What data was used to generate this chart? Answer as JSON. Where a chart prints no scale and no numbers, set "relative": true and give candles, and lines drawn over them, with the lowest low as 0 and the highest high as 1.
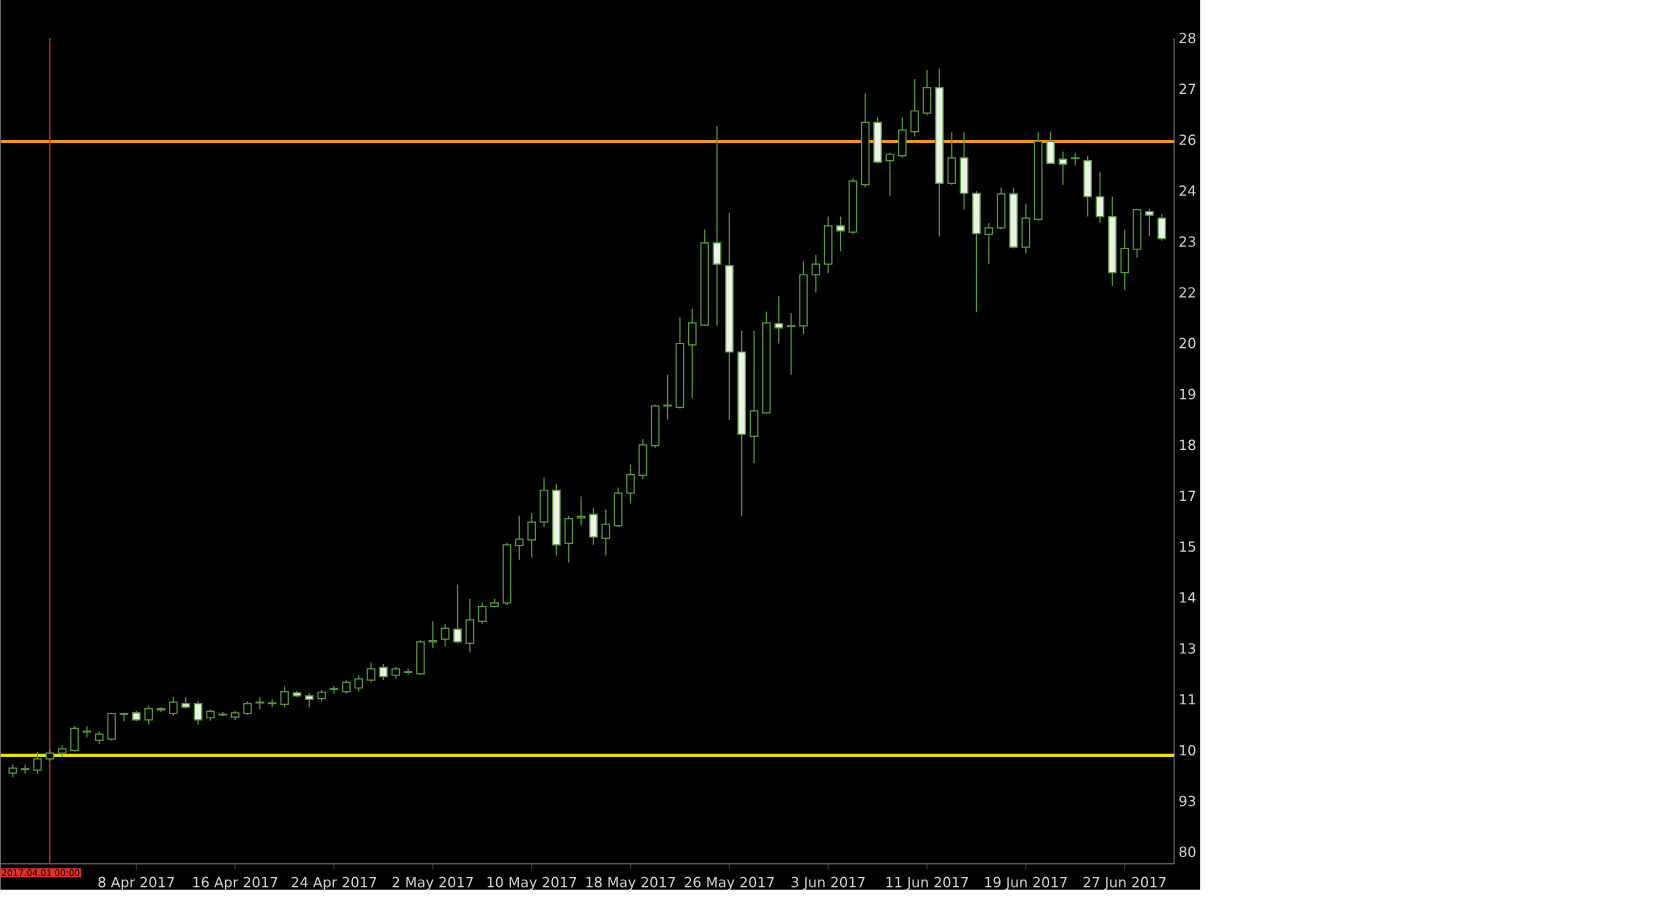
{
  "chart_data": {
    "type": "candlestick",
    "color": "#5a9a3c",
    "relative": true,
    "x": [
      "2017-03-29",
      "2017-03-30",
      "2017-03-31",
      "2017-04-01",
      "2017-04-02",
      "2017-04-03",
      "2017-04-04",
      "2017-04-05",
      "2017-04-06",
      "2017-04-07",
      "2017-04-08",
      "2017-04-09",
      "2017-04-10",
      "2017-04-11",
      "2017-04-12",
      "2017-04-13",
      "2017-04-14",
      "2017-04-15",
      "2017-04-16",
      "2017-04-17",
      "2017-04-18",
      "2017-04-19",
      "2017-04-20",
      "2017-04-21",
      "2017-04-22",
      "2017-04-23",
      "2017-04-24",
      "2017-04-25",
      "2017-04-26",
      "2017-04-27",
      "2017-04-28",
      "2017-04-29",
      "2017-04-30",
      "2017-05-01",
      "2017-05-02",
      "2017-05-03",
      "2017-05-04",
      "2017-05-05",
      "2017-05-06",
      "2017-05-07",
      "2017-05-08",
      "2017-05-09",
      "2017-05-10",
      "2017-05-11",
      "2017-05-12",
      "2017-05-13",
      "2017-05-14",
      "2017-05-15",
      "2017-05-16",
      "2017-05-17",
      "2017-05-18",
      "2017-05-19",
      "2017-05-20",
      "2017-05-21",
      "2017-05-22",
      "2017-05-23",
      "2017-05-24",
      "2017-05-25",
      "2017-05-26",
      "2017-05-27",
      "2017-05-28",
      "2017-05-29",
      "2017-05-30",
      "2017-05-31",
      "2017-06-01",
      "2017-06-02",
      "2017-06-03",
      "2017-06-04",
      "2017-06-05",
      "2017-06-06",
      "2017-06-07",
      "2017-06-08",
      "2017-06-09",
      "2017-06-10",
      "2017-06-11",
      "2017-06-12",
      "2017-06-13",
      "2017-06-14",
      "2017-06-15",
      "2017-06-16",
      "2017-06-17",
      "2017-06-18",
      "2017-06-19",
      "2017-06-20",
      "2017-06-21",
      "2017-06-22",
      "2017-06-23",
      "2017-06-24",
      "2017-06-25",
      "2017-06-26",
      "2017-06-27",
      "2017-06-28",
      "2017-06-29",
      "2017-06-30"
    ],
    "ohlc": [
      [
        0.006,
        0.018,
        0,
        0.013
      ],
      [
        0.012,
        0.018,
        0.005,
        0.011
      ],
      [
        0.01,
        0.036,
        0.005,
        0.026
      ],
      [
        0.026,
        0.04,
        0.023,
        0.034
      ],
      [
        0.034,
        0.045,
        0.029,
        0.04
      ],
      [
        0.038,
        0.072,
        0.036,
        0.069
      ],
      [
        0.065,
        0.072,
        0.056,
        0.064
      ],
      [
        0.052,
        0.065,
        0.047,
        0.061
      ],
      [
        0.054,
        0.091,
        0.052,
        0.09
      ],
      [
        0.09,
        0.091,
        0.079,
        0.089
      ],
      [
        0.091,
        0.094,
        0.079,
        0.081
      ],
      [
        0.081,
        0.101,
        0.074,
        0.097
      ],
      [
        0.095,
        0.099,
        0.092,
        0.097
      ],
      [
        0.09,
        0.113,
        0.087,
        0.106
      ],
      [
        0.104,
        0.113,
        0.097,
        0.099
      ],
      [
        0.104,
        0.108,
        0.074,
        0.081
      ],
      [
        0.084,
        0.096,
        0.08,
        0.093
      ],
      [
        0.088,
        0.092,
        0.086,
        0.089
      ],
      [
        0.085,
        0.094,
        0.081,
        0.091
      ],
      [
        0.09,
        0.107,
        0.088,
        0.104
      ],
      [
        0.105,
        0.113,
        0.096,
        0.106
      ],
      [
        0.104,
        0.11,
        0.099,
        0.105
      ],
      [
        0.103,
        0.128,
        0.099,
        0.121
      ],
      [
        0.119,
        0.122,
        0.113,
        0.115
      ],
      [
        0.115,
        0.119,
        0.099,
        0.11
      ],
      [
        0.111,
        0.123,
        0.107,
        0.12
      ],
      [
        0.124,
        0.129,
        0.118,
        0.125
      ],
      [
        0.121,
        0.137,
        0.118,
        0.134
      ],
      [
        0.126,
        0.144,
        0.121,
        0.139
      ],
      [
        0.137,
        0.162,
        0.134,
        0.153
      ],
      [
        0.155,
        0.16,
        0.137,
        0.142
      ],
      [
        0.144,
        0.156,
        0.139,
        0.153
      ],
      [
        0.148,
        0.153,
        0.145,
        0.149
      ],
      [
        0.146,
        0.194,
        0.145,
        0.191
      ],
      [
        0.191,
        0.22,
        0.182,
        0.193
      ],
      [
        0.195,
        0.216,
        0.185,
        0.21
      ],
      [
        0.209,
        0.272,
        0.189,
        0.191
      ],
      [
        0.189,
        0.252,
        0.176,
        0.222
      ],
      [
        0.22,
        0.247,
        0.216,
        0.241
      ],
      [
        0.241,
        0.252,
        0.24,
        0.246
      ],
      [
        0.246,
        0.331,
        0.243,
        0.328
      ],
      [
        0.327,
        0.369,
        0.307,
        0.336
      ],
      [
        0.335,
        0.373,
        0.31,
        0.36
      ],
      [
        0.36,
        0.423,
        0.353,
        0.405
      ],
      [
        0.405,
        0.414,
        0.313,
        0.328
      ],
      [
        0.33,
        0.369,
        0.303,
        0.365
      ],
      [
        0.366,
        0.396,
        0.355,
        0.368
      ],
      [
        0.371,
        0.38,
        0.328,
        0.339
      ],
      [
        0.337,
        0.378,
        0.313,
        0.357
      ],
      [
        0.355,
        0.409,
        0.353,
        0.401
      ],
      [
        0.401,
        0.441,
        0.387,
        0.427
      ],
      [
        0.426,
        0.477,
        0.421,
        0.469
      ],
      [
        0.468,
        0.526,
        0.465,
        0.524
      ],
      [
        0.524,
        0.568,
        0.505,
        0.525
      ],
      [
        0.522,
        0.649,
        0.52,
        0.612
      ],
      [
        0.61,
        0.661,
        0.535,
        0.641
      ],
      [
        0.638,
        0.773,
        0.637,
        0.754
      ],
      [
        0.754,
        0.919,
        0.637,
        0.724
      ],
      [
        0.722,
        0.796,
        0.504,
        0.6
      ],
      [
        0.6,
        0.63,
        0.369,
        0.484
      ],
      [
        0.481,
        0.63,
        0.443,
        0.517
      ],
      [
        0.514,
        0.657,
        0.513,
        0.641
      ],
      [
        0.64,
        0.679,
        0.612,
        0.634
      ],
      [
        0.636,
        0.655,
        0.568,
        0.637
      ],
      [
        0.637,
        0.728,
        0.625,
        0.709
      ],
      [
        0.709,
        0.737,
        0.684,
        0.724
      ],
      [
        0.724,
        0.791,
        0.711,
        0.778
      ],
      [
        0.778,
        0.791,
        0.742,
        0.771
      ],
      [
        0.769,
        0.845,
        0.766,
        0.841
      ],
      [
        0.836,
        0.965,
        0.832,
        0.924
      ],
      [
        0.924,
        0.931,
        0.866,
        0.868
      ],
      [
        0.87,
        0.881,
        0.82,
        0.879
      ],
      [
        0.877,
        0.931,
        0.874,
        0.913
      ],
      [
        0.911,
        0.985,
        0.904,
        0.94
      ],
      [
        0.937,
        0.998,
        0.934,
        0.973
      ],
      [
        0.973,
        1,
        0.763,
        0.838
      ],
      [
        0.838,
        0.91,
        0.836,
        0.874
      ],
      [
        0.874,
        0.91,
        0.801,
        0.824
      ],
      [
        0.824,
        0.827,
        0.656,
        0.767
      ],
      [
        0.766,
        0.782,
        0.724,
        0.775
      ],
      [
        0.775,
        0.832,
        0.773,
        0.823
      ],
      [
        0.823,
        0.832,
        0.746,
        0.748
      ],
      [
        0.748,
        0.809,
        0.739,
        0.789
      ],
      [
        0.787,
        0.91,
        0.785,
        0.897
      ],
      [
        0.897,
        0.91,
        0.865,
        0.866
      ],
      [
        0.872,
        0.883,
        0.836,
        0.865
      ],
      [
        0.873,
        0.881,
        0.863,
        0.874
      ],
      [
        0.87,
        0.877,
        0.791,
        0.819
      ],
      [
        0.819,
        0.854,
        0.782,
        0.791
      ],
      [
        0.791,
        0.819,
        0.693,
        0.712
      ],
      [
        0.712,
        0.773,
        0.688,
        0.746
      ],
      [
        0.745,
        0.802,
        0.733,
        0.801
      ],
      [
        0.798,
        0.802,
        0.764,
        0.793
      ],
      [
        0.789,
        0.795,
        0.757,
        0.76
      ]
    ],
    "xlim": [
      "2017-03-28",
      "2017-07-01"
    ],
    "xticks": [
      {
        "value": "2017-04-08",
        "label": "8 Apr 2017"
      },
      {
        "value": "2017-04-16",
        "label": "16 Apr 2017"
      },
      {
        "value": "2017-04-24",
        "label": "24 Apr 2017"
      },
      {
        "value": "2017-05-02",
        "label": "2 May 2017"
      },
      {
        "value": "2017-05-10",
        "label": "10 May 2017"
      },
      {
        "value": "2017-05-18",
        "label": "18 May 2017"
      },
      {
        "value": "2017-05-26",
        "label": "26 May 2017"
      },
      {
        "value": "2017-06-03",
        "label": "3 Jun 2017"
      },
      {
        "value": "2017-06-11",
        "label": "11 Jun 2017"
      },
      {
        "value": "2017-06-19",
        "label": "19 Jun 2017"
      },
      {
        "value": "2017-06-27",
        "label": "27 Jun 2017"
      }
    ],
    "annotations": [
      "28",
      "27",
      "26",
      "24",
      "23",
      "22",
      "20",
      "19",
      "18",
      "17",
      "15",
      "14",
      "13",
      "11",
      "10",
      "93",
      "80"
    ],
    "ref_lines": [
      {
        "axis": "y",
        "value": 0.897,
        "color": "#f0961e"
      },
      {
        "axis": "y",
        "value": 0.031,
        "color": "#e6e01e"
      },
      {
        "axis": "x",
        "value": "2017-04-01",
        "label": "2017.04.01 00:00",
        "color": "#e0302c"
      }
    ]
  }
}
